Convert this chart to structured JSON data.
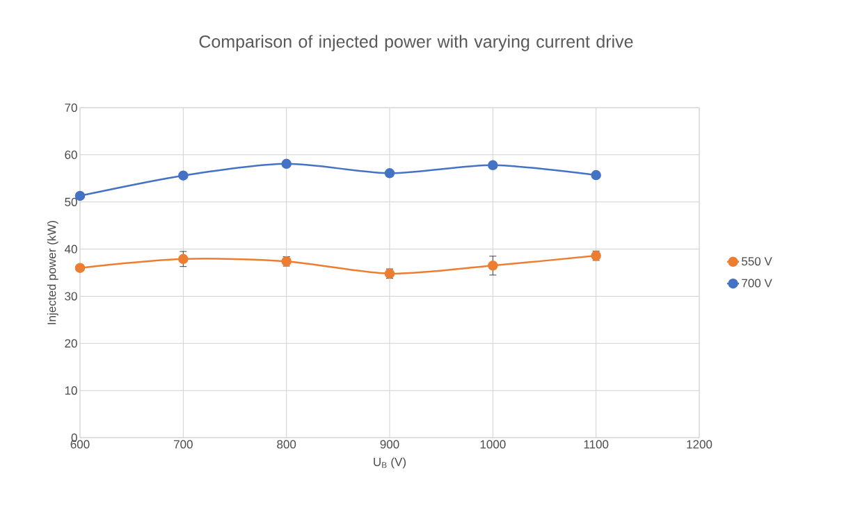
{
  "chart_data": {
    "type": "line",
    "title": "Comparison of injected power with varying current drive",
    "xlabel": "U$_{B}$ (V)",
    "ylabel": "Injected power (kW)",
    "x": [
      600,
      700,
      800,
      900,
      1000,
      1100
    ],
    "series": [
      {
        "name": "550 V",
        "color": "#ed7d31",
        "values": [
          36.0,
          37.9,
          37.4,
          34.8,
          36.5,
          38.6
        ],
        "errors": [
          null,
          1.6,
          1,
          1,
          2,
          1
        ]
      },
      {
        "name": "700 V",
        "color": "#4472c4",
        "values": [
          51.3,
          55.6,
          58.1,
          56.1,
          57.8,
          55.7
        ]
      }
    ],
    "xlim": [
      600,
      1200
    ],
    "xticks": [
      600,
      700,
      800,
      900,
      1000,
      1100,
      1200
    ],
    "ylim": [
      0,
      70
    ],
    "yticks": [
      0,
      10,
      20,
      30,
      40,
      50,
      60,
      70
    ],
    "grid": true,
    "legend": "right",
    "marker": "circle",
    "line_style": "solid"
  }
}
